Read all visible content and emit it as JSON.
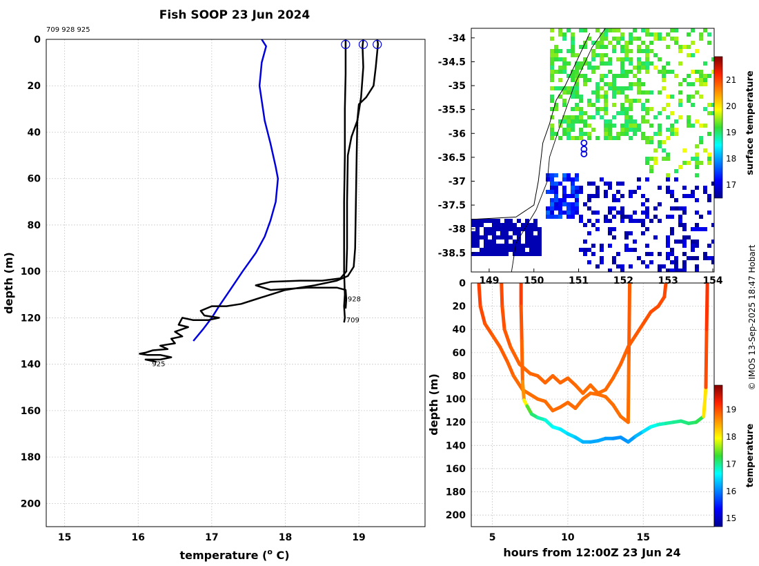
{
  "title": "Fish SOOP 23 Jun 2024",
  "platform_ids": "709 928 925",
  "credit": "© IMOS 13-Sep-2025 18:47 Hobart",
  "colors": {
    "background": "#ffffff",
    "grid": "#cccccc",
    "profile": "#000000",
    "climatology": "#0000dd",
    "marker": "#0000dd",
    "coast": "#000000"
  },
  "chart_data": [
    {
      "type": "line",
      "name": "temperature-depth profiles",
      "xlabel": "temperature (",
      "xlabel_sup": "o",
      "xlabel_end": " C)",
      "ylabel": "depth (m)",
      "xlim": [
        14.75,
        19.9
      ],
      "ylim": [
        210,
        0
      ],
      "xticks": [
        "15",
        "16",
        "17",
        "18",
        "19"
      ],
      "xtick_values": [
        15,
        16,
        17,
        18,
        19
      ],
      "yticks": [
        "0",
        "20",
        "40",
        "60",
        "80",
        "100",
        "120",
        "140",
        "160",
        "180",
        "200"
      ],
      "ytick_values": [
        0,
        20,
        40,
        60,
        80,
        100,
        120,
        140,
        160,
        180,
        200
      ],
      "grid": true,
      "series": [
        {
          "name": "climatology",
          "color": "#0000dd",
          "points": [
            [
              17.68,
              0
            ],
            [
              17.74,
              3
            ],
            [
              17.68,
              10
            ],
            [
              17.65,
              20
            ],
            [
              17.72,
              35
            ],
            [
              17.8,
              45
            ],
            [
              17.87,
              55
            ],
            [
              17.9,
              60
            ],
            [
              17.87,
              70
            ],
            [
              17.8,
              78
            ],
            [
              17.72,
              85
            ],
            [
              17.6,
              92
            ],
            [
              17.42,
              100
            ],
            [
              17.25,
              108
            ],
            [
              17.1,
              115
            ],
            [
              17.0,
              120
            ],
            [
              16.88,
              125
            ],
            [
              16.75,
              130
            ]
          ]
        },
        {
          "name": "709",
          "color": "#000000",
          "points": [
            [
              18.82,
              0
            ],
            [
              18.82,
              15
            ],
            [
              18.81,
              30
            ],
            [
              18.81,
              50
            ],
            [
              18.8,
              70
            ],
            [
              18.8,
              90
            ],
            [
              18.8,
              100
            ],
            [
              18.81,
              110
            ],
            [
              18.8,
              115
            ],
            [
              18.81,
              120
            ],
            [
              18.8,
              122
            ]
          ]
        },
        {
          "name": "928",
          "color": "#000000",
          "points": [
            [
              19.06,
              0
            ],
            [
              19.05,
              3
            ],
            [
              19.06,
              12
            ],
            [
              19.03,
              25
            ],
            [
              18.98,
              35
            ],
            [
              18.9,
              42
            ],
            [
              18.85,
              50
            ],
            [
              18.84,
              70
            ],
            [
              18.84,
              90
            ],
            [
              18.83,
              100
            ],
            [
              18.75,
              103
            ],
            [
              18.5,
              104
            ],
            [
              18.2,
              104
            ],
            [
              17.8,
              104.5
            ],
            [
              17.6,
              106
            ],
            [
              17.8,
              108
            ],
            [
              18.3,
              107
            ],
            [
              18.7,
              107
            ],
            [
              18.82,
              108
            ],
            [
              18.83,
              112
            ],
            [
              18.82,
              116
            ]
          ]
        },
        {
          "name": "925",
          "color": "#000000",
          "points": [
            [
              19.25,
              0
            ],
            [
              19.26,
              2
            ],
            [
              19.23,
              12
            ],
            [
              19.2,
              20
            ],
            [
              19.1,
              25
            ],
            [
              19.0,
              28
            ],
            [
              18.98,
              35
            ],
            [
              18.97,
              50
            ],
            [
              18.96,
              70
            ],
            [
              18.95,
              90
            ],
            [
              18.93,
              98
            ],
            [
              18.85,
              102
            ],
            [
              18.7,
              104
            ],
            [
              18.4,
              106
            ],
            [
              18.0,
              108
            ],
            [
              17.6,
              112
            ],
            [
              17.4,
              114
            ],
            [
              17.2,
              115
            ],
            [
              17.0,
              115
            ],
            [
              16.85,
              117
            ],
            [
              16.9,
              119
            ],
            [
              17.1,
              120
            ],
            [
              16.95,
              121
            ],
            [
              16.75,
              121
            ],
            [
              16.6,
              120
            ],
            [
              16.55,
              123
            ],
            [
              16.68,
              124
            ],
            [
              16.5,
              126
            ],
            [
              16.6,
              128
            ],
            [
              16.45,
              129
            ],
            [
              16.5,
              131
            ],
            [
              16.3,
              132
            ],
            [
              16.4,
              133.5
            ],
            [
              16.2,
              134
            ],
            [
              16.1,
              135
            ],
            [
              16.02,
              135.5
            ],
            [
              16.12,
              136
            ],
            [
              16.3,
              136
            ],
            [
              16.45,
              137
            ],
            [
              16.3,
              138
            ],
            [
              16.1,
              138
            ],
            [
              16.25,
              139
            ]
          ]
        }
      ],
      "markers": [
        {
          "id": "709",
          "temp": 18.82,
          "depth": 1
        },
        {
          "id": "928",
          "temp": 19.06,
          "depth": 1
        },
        {
          "id": "925",
          "temp": 19.25,
          "depth": 1
        }
      ],
      "annotations": [
        {
          "text": "928",
          "temp": 18.83,
          "depth": 112
        },
        {
          "text": "709",
          "temp": 18.81,
          "depth": 121
        },
        {
          "text": "925",
          "temp": 16.17,
          "depth": 140
        }
      ]
    },
    {
      "type": "heatmap",
      "name": "surface temperature map",
      "xlabel": "longitude",
      "ylabel": "latitude",
      "xlim": [
        148.6,
        154.03
      ],
      "ylim": [
        -38.9,
        -33.8
      ],
      "xticks": [
        "149",
        "150",
        "151",
        "152",
        "153",
        "154"
      ],
      "xtick_values": [
        149,
        150,
        151,
        152,
        153,
        154
      ],
      "yticks": [
        "-34",
        "-34.5",
        "-35",
        "-35.5",
        "-36",
        "-36.5",
        "-37",
        "-37.5",
        "-38",
        "-38.5"
      ],
      "ytick_values": [
        -34,
        -34.5,
        -35,
        -35.5,
        -36,
        -36.5,
        -37,
        -37.5,
        -38,
        -38.5
      ],
      "colorbar": {
        "label": "surface temperature",
        "range": [
          16.5,
          21.9
        ],
        "ticks": [
          "17",
          "18",
          "19",
          "20",
          "21"
        ],
        "tick_values": [
          17,
          18,
          19,
          20,
          21
        ]
      },
      "drop_positions": [
        [
          151.12,
          -36.2
        ],
        [
          151.12,
          -36.33
        ],
        [
          151.12,
          -36.43
        ]
      ],
      "coastline": [
        [
          148.6,
          -37.8
        ],
        [
          149.6,
          -37.75
        ],
        [
          150.0,
          -37.5
        ],
        [
          150.1,
          -37.0
        ],
        [
          150.15,
          -36.6
        ],
        [
          150.2,
          -36.2
        ],
        [
          150.35,
          -35.8
        ],
        [
          150.5,
          -35.3
        ],
        [
          150.7,
          -35.0
        ],
        [
          150.9,
          -34.6
        ],
        [
          151.1,
          -34.2
        ],
        [
          151.25,
          -33.9
        ]
      ],
      "border": [
        [
          149.5,
          -38.9
        ],
        [
          149.6,
          -38.3
        ],
        [
          150.05,
          -37.6
        ],
        [
          150.3,
          -37.0
        ],
        [
          150.35,
          -36.5
        ],
        [
          150.6,
          -35.8
        ],
        [
          150.9,
          -35.0
        ],
        [
          151.3,
          -34.2
        ],
        [
          151.6,
          -33.8
        ]
      ]
    },
    {
      "type": "scatter",
      "name": "depth vs time",
      "xlabel": "hours from 12:00Z 23 Jun 24",
      "ylabel": "depth (m)",
      "xlim": [
        3.6,
        19.7
      ],
      "ylim": [
        210,
        0
      ],
      "xticks": [
        "5",
        "10",
        "15"
      ],
      "xtick_values": [
        5,
        10,
        15
      ],
      "yticks": [
        "0",
        "20",
        "40",
        "60",
        "80",
        "100",
        "120",
        "140",
        "160",
        "180",
        "200"
      ],
      "ytick_values": [
        0,
        20,
        40,
        60,
        80,
        100,
        120,
        140,
        160,
        180,
        200
      ],
      "grid": true,
      "colorbar": {
        "label": "temperature",
        "range": [
          14.7,
          19.9
        ],
        "ticks": [
          "15",
          "16",
          "17",
          "18",
          "19"
        ],
        "tick_values": [
          15,
          16,
          17,
          18,
          19
        ]
      },
      "tracks": [
        {
          "name": "709",
          "points": [
            [
              4.1,
              0,
              19.1
            ],
            [
              4.2,
              20,
              19.05
            ],
            [
              4.5,
              35,
              19.0
            ],
            [
              5.0,
              45,
              18.9
            ],
            [
              5.5,
              55,
              18.9
            ],
            [
              6.0,
              68,
              18.9
            ],
            [
              6.4,
              80,
              18.85
            ],
            [
              7.0,
              92,
              18.8
            ],
            [
              7.5,
              96,
              18.8
            ],
            [
              8.0,
              100,
              18.8
            ],
            [
              8.5,
              102,
              18.8
            ],
            [
              9.0,
              110,
              18.82
            ],
            [
              9.5,
              107,
              18.82
            ],
            [
              10.0,
              103,
              18.82
            ],
            [
              10.5,
              108,
              18.82
            ],
            [
              11.0,
              100,
              18.8
            ],
            [
              11.5,
              95,
              18.8
            ],
            [
              12.0,
              96,
              18.8
            ],
            [
              12.5,
              98,
              18.8
            ],
            [
              13.0,
              105,
              18.8
            ],
            [
              13.5,
              115,
              18.8
            ],
            [
              14.0,
              120,
              18.8
            ],
            [
              14.05,
              60,
              18.82
            ],
            [
              14.1,
              0,
              19.0
            ]
          ]
        },
        {
          "name": "928",
          "points": [
            [
              5.6,
              0,
              19.05
            ],
            [
              5.65,
              20,
              19.0
            ],
            [
              5.8,
              40,
              18.95
            ],
            [
              6.2,
              55,
              18.9
            ],
            [
              6.8,
              70,
              18.85
            ],
            [
              7.5,
              78,
              18.85
            ],
            [
              8.0,
              80,
              18.85
            ],
            [
              8.5,
              86,
              18.85
            ],
            [
              9.0,
              80,
              18.85
            ],
            [
              9.5,
              86,
              18.85
            ],
            [
              10.0,
              82,
              18.85
            ],
            [
              10.5,
              88,
              18.85
            ],
            [
              11.0,
              95,
              18.8
            ],
            [
              11.5,
              88,
              18.82
            ],
            [
              12.0,
              95,
              18.8
            ],
            [
              12.5,
              92,
              18.82
            ],
            [
              13.0,
              82,
              18.85
            ],
            [
              13.5,
              70,
              18.85
            ],
            [
              14.0,
              55,
              18.9
            ],
            [
              14.5,
              45,
              18.9
            ],
            [
              15.0,
              35,
              18.95
            ],
            [
              15.5,
              25,
              19.0
            ],
            [
              16.0,
              20,
              19.0
            ],
            [
              16.4,
              12,
              19.0
            ],
            [
              16.5,
              0,
              19.05
            ]
          ]
        },
        {
          "name": "925",
          "points": [
            [
              6.9,
              0,
              19.2
            ],
            [
              6.9,
              20,
              19.0
            ],
            [
              6.95,
              50,
              18.9
            ],
            [
              7.0,
              85,
              18.8
            ],
            [
              7.1,
              101,
              18.4
            ],
            [
              7.3,
              106,
              17.6
            ],
            [
              7.6,
              113,
              17.2
            ],
            [
              8.0,
              116,
              17.0
            ],
            [
              8.5,
              118,
              16.8
            ],
            [
              9.0,
              124,
              16.7
            ],
            [
              9.5,
              126,
              16.6
            ],
            [
              10.0,
              130,
              16.5
            ],
            [
              10.5,
              133,
              16.4
            ],
            [
              11.0,
              137,
              16.3
            ],
            [
              11.5,
              137,
              16.2
            ],
            [
              12.0,
              136,
              16.2
            ],
            [
              12.5,
              134,
              16.2
            ],
            [
              13.0,
              134,
              16.1
            ],
            [
              13.5,
              133,
              16.1
            ],
            [
              14.0,
              137,
              16.1
            ],
            [
              14.5,
              132,
              16.2
            ],
            [
              15.0,
              128,
              16.4
            ],
            [
              15.5,
              124,
              16.6
            ],
            [
              16.0,
              122,
              16.8
            ],
            [
              16.5,
              121,
              16.9
            ],
            [
              17.0,
              120,
              17.0
            ],
            [
              17.5,
              119,
              17.0
            ],
            [
              18.0,
              121,
              17.1
            ],
            [
              18.5,
              120,
              17.1
            ],
            [
              19.0,
              115,
              17.3
            ],
            [
              19.15,
              90,
              18.9
            ],
            [
              19.2,
              40,
              19.1
            ],
            [
              19.25,
              0,
              19.2
            ]
          ]
        }
      ]
    }
  ]
}
